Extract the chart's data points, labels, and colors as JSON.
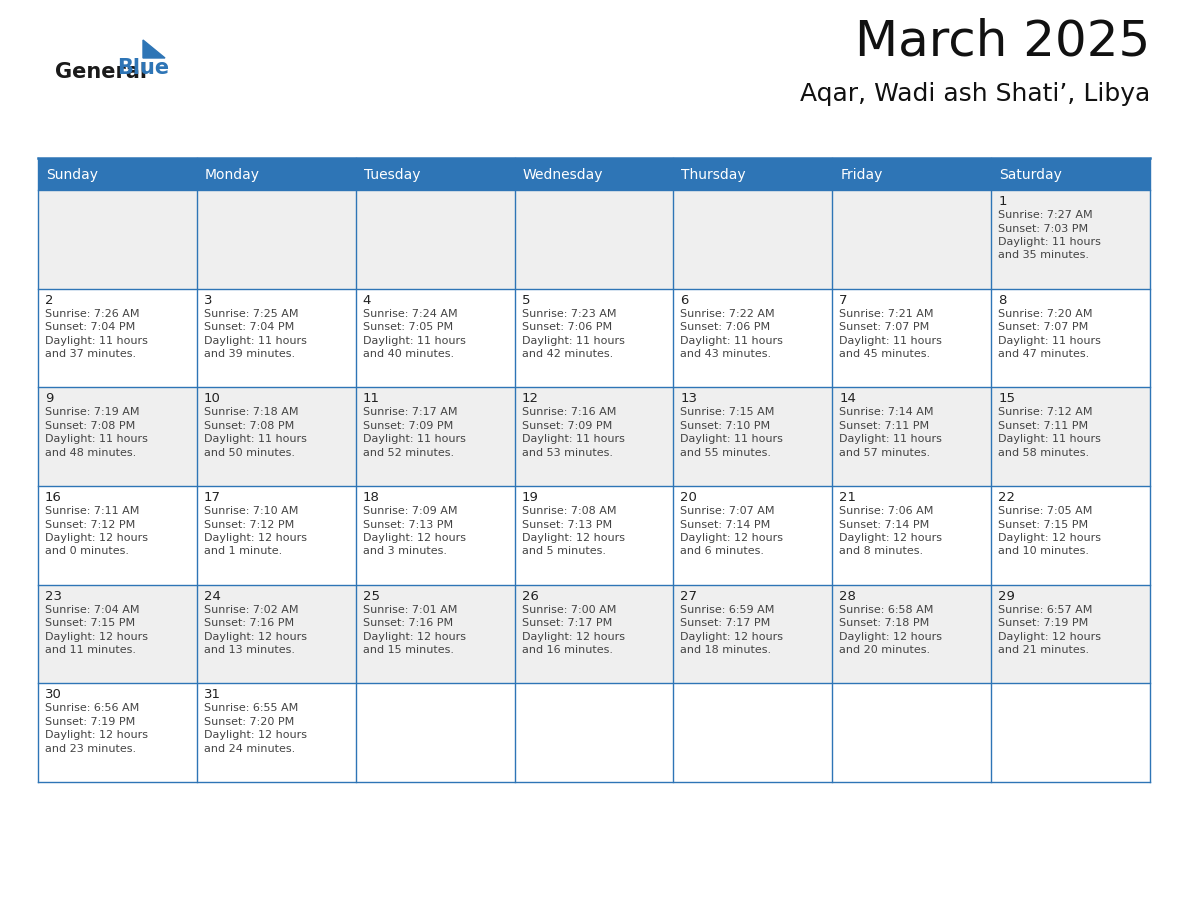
{
  "title": "March 2025",
  "subtitle": "Aqar, Wadi ash Shati’, Libya",
  "days_of_week": [
    "Sunday",
    "Monday",
    "Tuesday",
    "Wednesday",
    "Thursday",
    "Friday",
    "Saturday"
  ],
  "header_bg": "#2E75B6",
  "header_text": "#FFFFFF",
  "cell_bg_odd": "#EFEFEF",
  "cell_bg_even": "#FFFFFF",
  "border_color": "#2E75B6",
  "text_color": "#333333",
  "day_num_color": "#222222",
  "logo_general_color": "#1a1a1a",
  "logo_blue_color": "#2E75B6",
  "calendar_data": [
    [
      null,
      null,
      null,
      null,
      null,
      null,
      1
    ],
    [
      2,
      3,
      4,
      5,
      6,
      7,
      8
    ],
    [
      9,
      10,
      11,
      12,
      13,
      14,
      15
    ],
    [
      16,
      17,
      18,
      19,
      20,
      21,
      22
    ],
    [
      23,
      24,
      25,
      26,
      27,
      28,
      29
    ],
    [
      30,
      31,
      null,
      null,
      null,
      null,
      null
    ]
  ],
  "cell_info": {
    "1": [
      "Sunrise: 7:27 AM",
      "Sunset: 7:03 PM",
      "Daylight: 11 hours",
      "and 35 minutes."
    ],
    "2": [
      "Sunrise: 7:26 AM",
      "Sunset: 7:04 PM",
      "Daylight: 11 hours",
      "and 37 minutes."
    ],
    "3": [
      "Sunrise: 7:25 AM",
      "Sunset: 7:04 PM",
      "Daylight: 11 hours",
      "and 39 minutes."
    ],
    "4": [
      "Sunrise: 7:24 AM",
      "Sunset: 7:05 PM",
      "Daylight: 11 hours",
      "and 40 minutes."
    ],
    "5": [
      "Sunrise: 7:23 AM",
      "Sunset: 7:06 PM",
      "Daylight: 11 hours",
      "and 42 minutes."
    ],
    "6": [
      "Sunrise: 7:22 AM",
      "Sunset: 7:06 PM",
      "Daylight: 11 hours",
      "and 43 minutes."
    ],
    "7": [
      "Sunrise: 7:21 AM",
      "Sunset: 7:07 PM",
      "Daylight: 11 hours",
      "and 45 minutes."
    ],
    "8": [
      "Sunrise: 7:20 AM",
      "Sunset: 7:07 PM",
      "Daylight: 11 hours",
      "and 47 minutes."
    ],
    "9": [
      "Sunrise: 7:19 AM",
      "Sunset: 7:08 PM",
      "Daylight: 11 hours",
      "and 48 minutes."
    ],
    "10": [
      "Sunrise: 7:18 AM",
      "Sunset: 7:08 PM",
      "Daylight: 11 hours",
      "and 50 minutes."
    ],
    "11": [
      "Sunrise: 7:17 AM",
      "Sunset: 7:09 PM",
      "Daylight: 11 hours",
      "and 52 minutes."
    ],
    "12": [
      "Sunrise: 7:16 AM",
      "Sunset: 7:09 PM",
      "Daylight: 11 hours",
      "and 53 minutes."
    ],
    "13": [
      "Sunrise: 7:15 AM",
      "Sunset: 7:10 PM",
      "Daylight: 11 hours",
      "and 55 minutes."
    ],
    "14": [
      "Sunrise: 7:14 AM",
      "Sunset: 7:11 PM",
      "Daylight: 11 hours",
      "and 57 minutes."
    ],
    "15": [
      "Sunrise: 7:12 AM",
      "Sunset: 7:11 PM",
      "Daylight: 11 hours",
      "and 58 minutes."
    ],
    "16": [
      "Sunrise: 7:11 AM",
      "Sunset: 7:12 PM",
      "Daylight: 12 hours",
      "and 0 minutes."
    ],
    "17": [
      "Sunrise: 7:10 AM",
      "Sunset: 7:12 PM",
      "Daylight: 12 hours",
      "and 1 minute."
    ],
    "18": [
      "Sunrise: 7:09 AM",
      "Sunset: 7:13 PM",
      "Daylight: 12 hours",
      "and 3 minutes."
    ],
    "19": [
      "Sunrise: 7:08 AM",
      "Sunset: 7:13 PM",
      "Daylight: 12 hours",
      "and 5 minutes."
    ],
    "20": [
      "Sunrise: 7:07 AM",
      "Sunset: 7:14 PM",
      "Daylight: 12 hours",
      "and 6 minutes."
    ],
    "21": [
      "Sunrise: 7:06 AM",
      "Sunset: 7:14 PM",
      "Daylight: 12 hours",
      "and 8 minutes."
    ],
    "22": [
      "Sunrise: 7:05 AM",
      "Sunset: 7:15 PM",
      "Daylight: 12 hours",
      "and 10 minutes."
    ],
    "23": [
      "Sunrise: 7:04 AM",
      "Sunset: 7:15 PM",
      "Daylight: 12 hours",
      "and 11 minutes."
    ],
    "24": [
      "Sunrise: 7:02 AM",
      "Sunset: 7:16 PM",
      "Daylight: 12 hours",
      "and 13 minutes."
    ],
    "25": [
      "Sunrise: 7:01 AM",
      "Sunset: 7:16 PM",
      "Daylight: 12 hours",
      "and 15 minutes."
    ],
    "26": [
      "Sunrise: 7:00 AM",
      "Sunset: 7:17 PM",
      "Daylight: 12 hours",
      "and 16 minutes."
    ],
    "27": [
      "Sunrise: 6:59 AM",
      "Sunset: 7:17 PM",
      "Daylight: 12 hours",
      "and 18 minutes."
    ],
    "28": [
      "Sunrise: 6:58 AM",
      "Sunset: 7:18 PM",
      "Daylight: 12 hours",
      "and 20 minutes."
    ],
    "29": [
      "Sunrise: 6:57 AM",
      "Sunset: 7:19 PM",
      "Daylight: 12 hours",
      "and 21 minutes."
    ],
    "30": [
      "Sunrise: 6:56 AM",
      "Sunset: 7:19 PM",
      "Daylight: 12 hours",
      "and 23 minutes."
    ],
    "31": [
      "Sunrise: 6:55 AM",
      "Sunset: 7:20 PM",
      "Daylight: 12 hours",
      "and 24 minutes."
    ]
  },
  "fig_width": 11.88,
  "fig_height": 9.18,
  "dpi": 100
}
